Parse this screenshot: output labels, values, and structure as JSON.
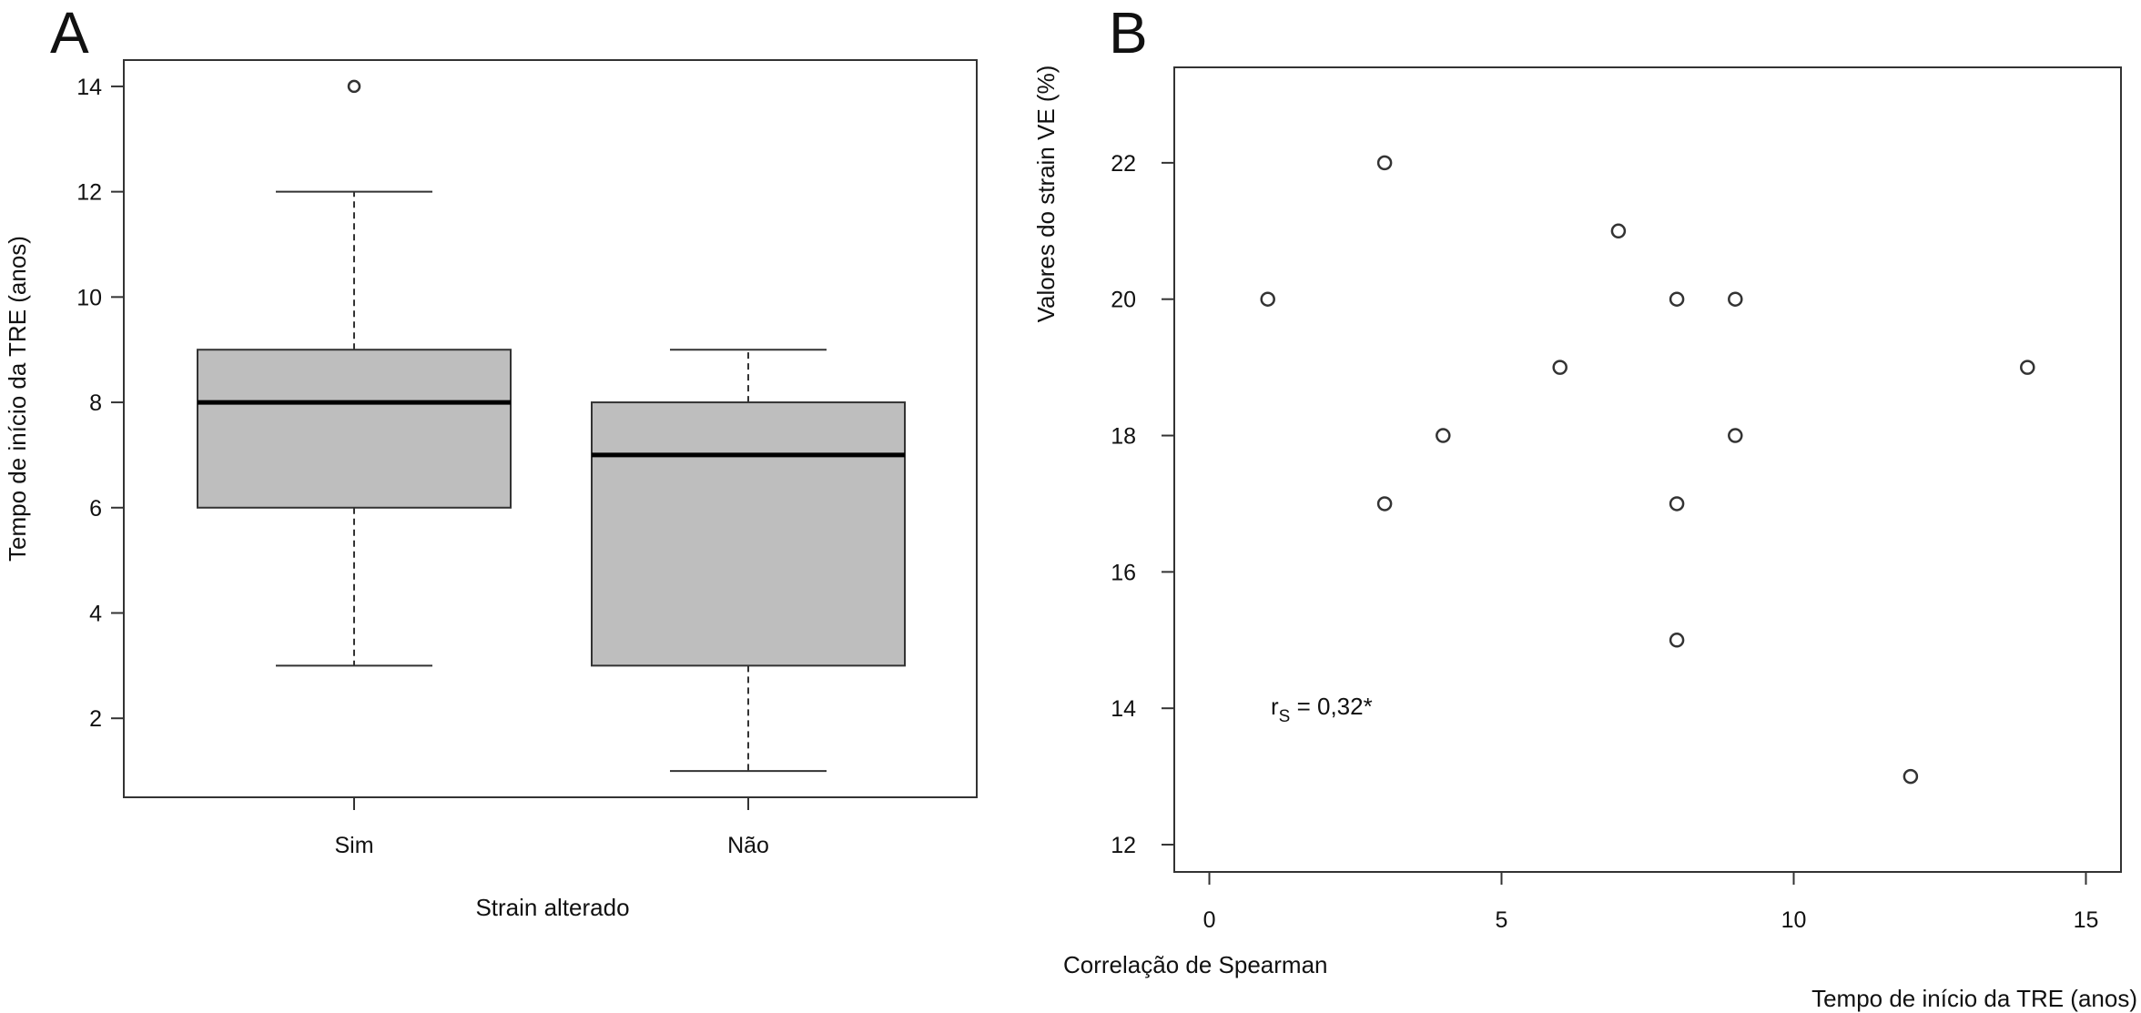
{
  "chart_data": [
    {
      "panel_label": "A",
      "type": "boxplot",
      "xlabel": "Strain alterado",
      "ylabel": "Tempo de início da TRE (anos)",
      "ylim": [
        0.5,
        14.5
      ],
      "yticks": [
        2,
        4,
        6,
        8,
        10,
        12,
        14
      ],
      "categories": [
        "Sim",
        "Não"
      ],
      "boxes": [
        {
          "category": "Sim",
          "whisker_low": 3,
          "q1": 6,
          "median": 8,
          "q3": 9,
          "whisker_high": 12,
          "outliers": [
            14
          ]
        },
        {
          "category": "Não",
          "whisker_low": 1,
          "q1": 3,
          "median": 7,
          "q3": 8,
          "whisker_high": 9,
          "outliers": []
        }
      ],
      "box_color": "#bebebe",
      "grid": false
    },
    {
      "panel_label": "B",
      "type": "scatter",
      "xlabel": "Tempo de início da TRE (anos)",
      "ylabel": "Valores do strain VE (%)",
      "caption": "Correlação de Spearman",
      "annotation": {
        "prefix": "r",
        "subscript": "S",
        "text": " = 0,32*"
      },
      "xlim": [
        -0.6,
        15.6
      ],
      "ylim": [
        11.6,
        23.4
      ],
      "xticks": [
        0,
        5,
        10,
        15
      ],
      "yticks": [
        12,
        14,
        16,
        18,
        20,
        22
      ],
      "points": [
        {
          "x": 1,
          "y": 20
        },
        {
          "x": 3,
          "y": 22
        },
        {
          "x": 3,
          "y": 17
        },
        {
          "x": 4,
          "y": 18
        },
        {
          "x": 6,
          "y": 19
        },
        {
          "x": 7,
          "y": 21
        },
        {
          "x": 8,
          "y": 20
        },
        {
          "x": 8,
          "y": 17
        },
        {
          "x": 8,
          "y": 15
        },
        {
          "x": 9,
          "y": 20
        },
        {
          "x": 9,
          "y": 18
        },
        {
          "x": 12,
          "y": 13
        },
        {
          "x": 14,
          "y": 19
        }
      ],
      "grid": false
    }
  ]
}
